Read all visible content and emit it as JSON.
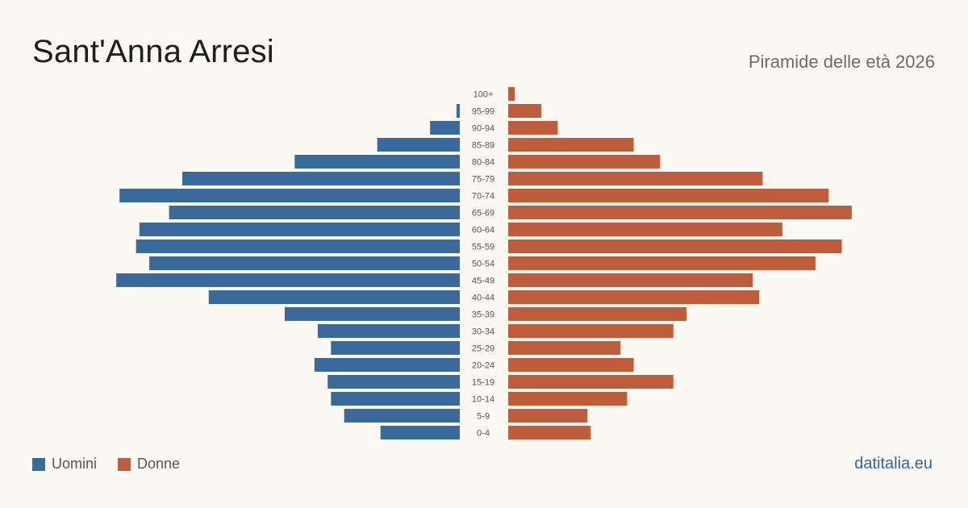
{
  "title": "Sant'Anna Arresi",
  "subtitle": "Piramide delle età 2026",
  "brand": "datitalia.eu",
  "colors": {
    "men": "#3a6a9b",
    "women": "#bd5d3c"
  },
  "chart_data": {
    "type": "bar",
    "orientation": "horizontal-pyramid",
    "categories": [
      "100+",
      "95-99",
      "90-94",
      "85-89",
      "80-84",
      "75-79",
      "70-74",
      "65-69",
      "60-64",
      "55-59",
      "50-54",
      "45-49",
      "40-44",
      "35-39",
      "30-34",
      "25-29",
      "20-24",
      "15-19",
      "10-14",
      "5-9",
      "0-4"
    ],
    "series": [
      {
        "name": "Uomini",
        "color": "#3a6a9b",
        "side": "left",
        "values": [
          0,
          1,
          9,
          25,
          50,
          84,
          103,
          88,
          97,
          98,
          94,
          104,
          76,
          53,
          43,
          39,
          44,
          40,
          39,
          35,
          24
        ]
      },
      {
        "name": "Donne",
        "color": "#bd5d3c",
        "side": "right",
        "values": [
          2,
          10,
          15,
          38,
          46,
          77,
          97,
          104,
          83,
          101,
          93,
          74,
          76,
          54,
          50,
          34,
          38,
          50,
          36,
          24,
          25
        ]
      }
    ],
    "legend": "bottom-left"
  }
}
